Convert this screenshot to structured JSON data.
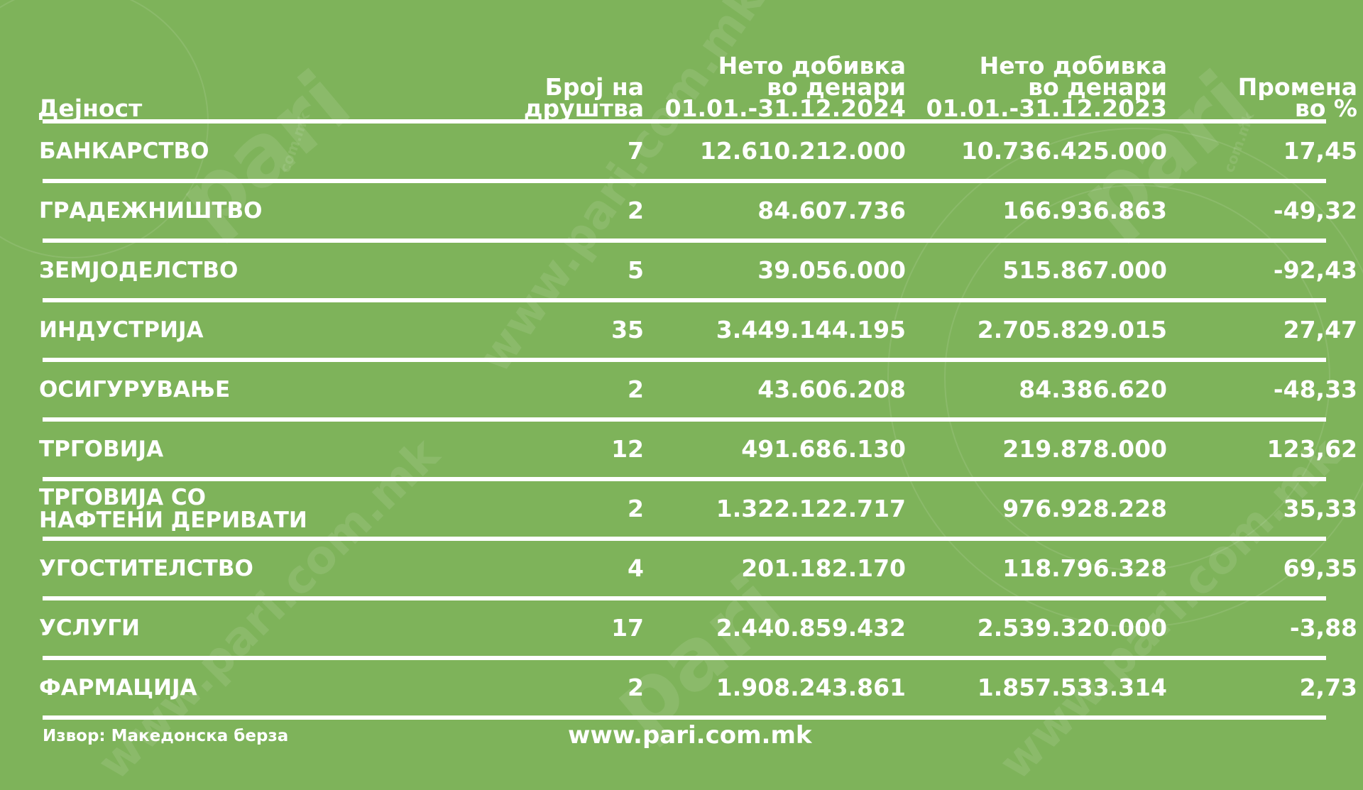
{
  "table": {
    "headers": {
      "activity": "Дејност",
      "count_line1": "Број на",
      "count_line2": "друштва",
      "profit2024_line1": "Нето добивка",
      "profit2024_line2": "во денари",
      "profit2024_line3": "01.01.-31.12.2024",
      "profit2023_line1": "Нето добивка",
      "profit2023_line2": "во денари",
      "profit2023_line3": "01.01.-31.12.2023",
      "change_line1": "Промена",
      "change_line2": "во %"
    },
    "rows": [
      {
        "activity": "БАНКАРСТВО",
        "count": "7",
        "profit2024": "12.610.212.000",
        "profit2023": "10.736.425.000",
        "change": "17,45"
      },
      {
        "activity": "ГРАДЕЖНИШТВО",
        "count": "2",
        "profit2024": "84.607.736",
        "profit2023": "166.936.863",
        "change": "-49,32"
      },
      {
        "activity": "ЗЕМЈОДЕЛСТВО",
        "count": "5",
        "profit2024": "39.056.000",
        "profit2023": "515.867.000",
        "change": "-92,43"
      },
      {
        "activity": "ИНДУСТРИЈА",
        "count": "35",
        "profit2024": "3.449.144.195",
        "profit2023": "2.705.829.015",
        "change": "27,47"
      },
      {
        "activity": "ОСИГУРУВАЊЕ",
        "count": "2",
        "profit2024": "43.606.208",
        "profit2023": "84.386.620",
        "change": "-48,33"
      },
      {
        "activity": "ТРГОВИЈА",
        "count": "12",
        "profit2024": "491.686.130",
        "profit2023": "219.878.000",
        "change": "123,62"
      },
      {
        "activity_line1": "ТРГОВИЈА СО",
        "activity_line2": "НАФТЕНИ ДЕРИВАТИ",
        "count": "2",
        "profit2024": "1.322.122.717",
        "profit2023": "976.928.228",
        "change": "35,33"
      },
      {
        "activity": "УГОСТИТЕЛСТВО",
        "count": "4",
        "profit2024": "201.182.170",
        "profit2023": "118.796.328",
        "change": "69,35"
      },
      {
        "activity": "УСЛУГИ",
        "count": "17",
        "profit2024": "2.440.859.432",
        "profit2023": "2.539.320.000",
        "change": "-3,88"
      },
      {
        "activity": "ФАРМАЦИЈА",
        "count": "2",
        "profit2024": "1.908.243.861",
        "profit2023": "1.857.533.314",
        "change": "2,73"
      }
    ]
  },
  "footer": {
    "source": "Извор: Македонска берза",
    "website": "www.pari.com.mk"
  },
  "watermark": {
    "logo_text": "pari",
    "small_text": "com.mk",
    "diagonal_text": "www.pari.com.mk"
  },
  "colors": {
    "background": "#7eb35a",
    "text": "#ffffff"
  }
}
